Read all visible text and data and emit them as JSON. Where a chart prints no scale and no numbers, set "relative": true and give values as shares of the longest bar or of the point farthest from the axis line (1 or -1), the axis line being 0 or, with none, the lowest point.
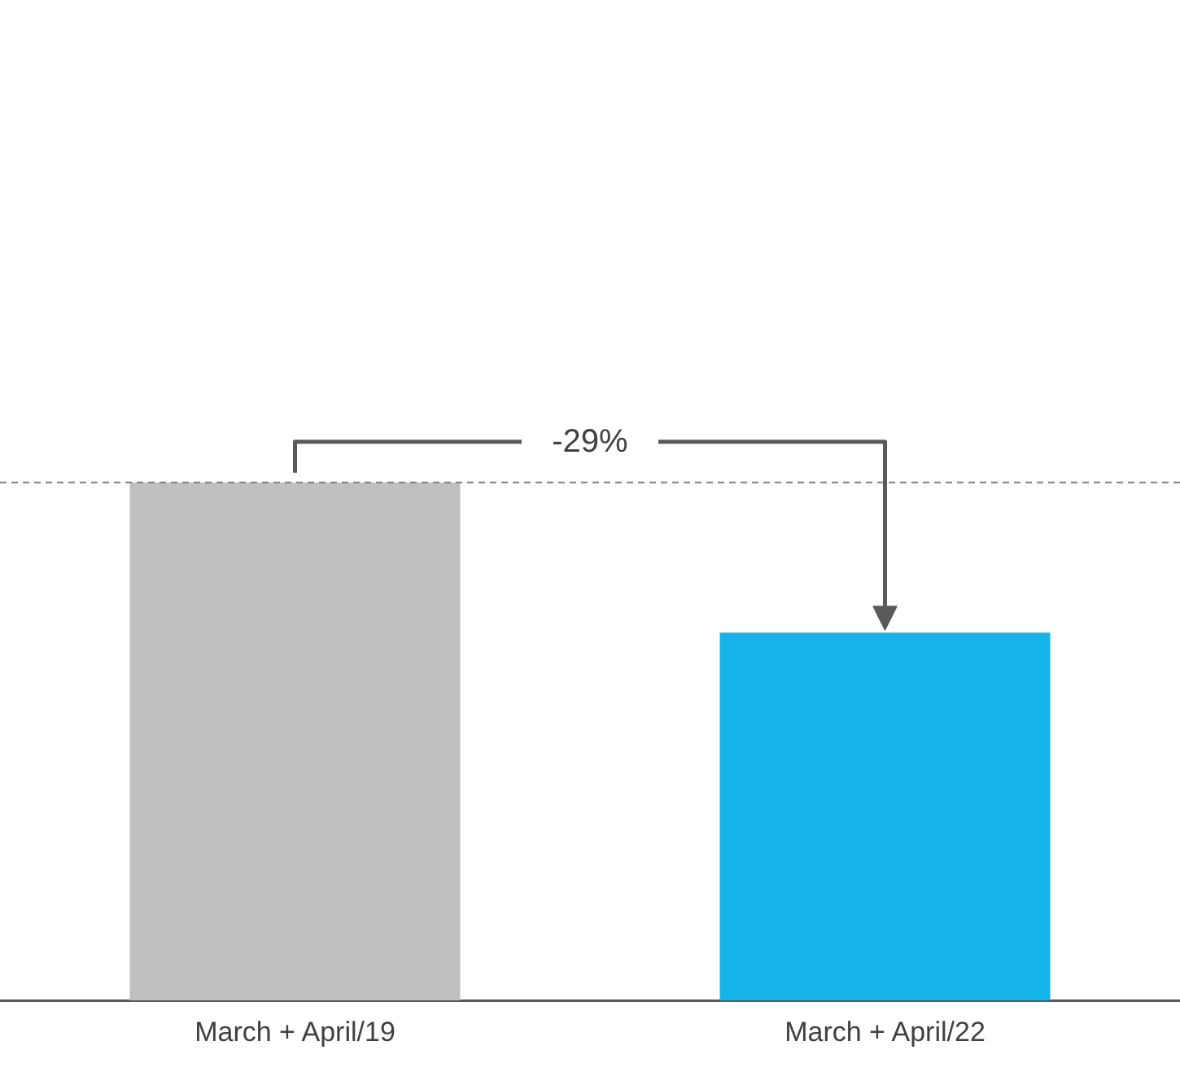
{
  "chart_data": {
    "type": "bar",
    "relative": true,
    "categories": [
      "March + April/19",
      "March + April/22"
    ],
    "values": [
      1,
      0.71
    ],
    "colors": [
      "#c0c0c0",
      "#14b4e8"
    ],
    "ref_lines": [
      {
        "axis": "y",
        "value": 1,
        "line_style": "dashed",
        "color": "#808080"
      }
    ],
    "annotations": [
      "-29%"
    ],
    "grid": false,
    "legend": false
  }
}
